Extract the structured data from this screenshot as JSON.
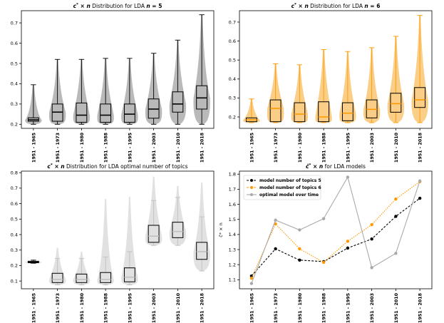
{
  "chart_data": [
    {
      "type": "violin-box",
      "title": "c* × n Distribution for LDA n = 5",
      "title_parts": [
        "c",
        "*",
        " × ",
        "n",
        " Distribution for LDA ",
        "n",
        " = 5"
      ],
      "categories": [
        "1951 - 1965",
        "1951 - 1973",
        "1951 - 1980",
        "1951 - 1988",
        "1951 - 1995",
        "1951 - 2003",
        "1951 - 2010",
        "1951 - 2018"
      ],
      "ylim": [
        0.18,
        0.76
      ],
      "yticks": [
        0.2,
        0.3,
        0.4,
        0.5,
        0.6,
        0.7
      ],
      "color_box": "#000000",
      "color_median": "#000000",
      "color_violin": "#808080",
      "boxes": [
        {
          "min": 0.2,
          "q1": 0.215,
          "median": 0.222,
          "q3": 0.232,
          "max": 0.395,
          "box_color": "#000000",
          "med_color": "#000000",
          "cap_color": "#000000",
          "vtop": 0.395
        },
        {
          "min": 0.2,
          "q1": 0.215,
          "median": 0.26,
          "q3": 0.3,
          "max": 0.52,
          "box_color": "#000000",
          "med_color": "#000000",
          "cap_color": "#000000",
          "vtop": 0.52
        },
        {
          "min": 0.2,
          "q1": 0.21,
          "median": 0.245,
          "q3": 0.305,
          "max": 0.52,
          "box_color": "#000000",
          "med_color": "#000000",
          "cap_color": "#000000",
          "vtop": 0.52
        },
        {
          "min": 0.2,
          "q1": 0.21,
          "median": 0.245,
          "q3": 0.3,
          "max": 0.525,
          "box_color": "#000000",
          "med_color": "#000000",
          "cap_color": "#000000",
          "vtop": 0.525
        },
        {
          "min": 0.2,
          "q1": 0.21,
          "median": 0.25,
          "q3": 0.3,
          "max": 0.525,
          "box_color": "#000000",
          "med_color": "#000000",
          "cap_color": "#000000",
          "vtop": 0.525
        },
        {
          "min": 0.2,
          "q1": 0.23,
          "median": 0.275,
          "q3": 0.325,
          "max": 0.55,
          "box_color": "#000000",
          "med_color": "#000000",
          "cap_color": "#000000",
          "vtop": 0.55
        },
        {
          "min": 0.2,
          "q1": 0.26,
          "median": 0.3,
          "q3": 0.36,
          "max": 0.615,
          "box_color": "#000000",
          "med_color": "#000000",
          "cap_color": "#000000",
          "vtop": 0.615
        },
        {
          "min": 0.2,
          "q1": 0.275,
          "median": 0.33,
          "q3": 0.39,
          "max": 0.74,
          "box_color": "#000000",
          "med_color": "#000000",
          "cap_color": "#000000",
          "vtop": 0.74
        }
      ]
    },
    {
      "type": "violin-box",
      "title": "c* × n Distribution for LDA n = 6",
      "title_parts": [
        "c",
        "*",
        " × ",
        "n",
        " Distribution for LDA ",
        "n",
        " = 6"
      ],
      "categories": [
        "1951 - 1965",
        "1951 - 1973",
        "1951 - 1980",
        "1951 - 1988",
        "1951 - 1995",
        "1951 - 2003",
        "1951 - 2010",
        "1951 - 2018"
      ],
      "ylim": [
        0.14,
        0.76
      ],
      "yticks": [
        0.2,
        0.3,
        0.4,
        0.5,
        0.6,
        0.7
      ],
      "color_box": "#000000",
      "color_median": "#ff9900",
      "color_violin": "#f5a623",
      "boxes": [
        {
          "min": 0.17,
          "q1": 0.175,
          "median": 0.185,
          "q3": 0.195,
          "max": 0.295,
          "box_color": "#000000",
          "med_color": "#ff9900",
          "cap_color": "#ff9900",
          "vtop": 0.295
        },
        {
          "min": 0.17,
          "q1": 0.175,
          "median": 0.245,
          "q3": 0.29,
          "max": 0.48,
          "box_color": "#000000",
          "med_color": "#ff9900",
          "cap_color": "#ff9900",
          "vtop": 0.48
        },
        {
          "min": 0.17,
          "q1": 0.175,
          "median": 0.215,
          "q3": 0.275,
          "max": 0.475,
          "box_color": "#000000",
          "med_color": "#ff9900",
          "cap_color": "#ff9900",
          "vtop": 0.475
        },
        {
          "min": 0.17,
          "q1": 0.175,
          "median": 0.2,
          "q3": 0.28,
          "max": 0.555,
          "box_color": "#000000",
          "med_color": "#ff9900",
          "cap_color": "#ff9900",
          "vtop": 0.555
        },
        {
          "min": 0.17,
          "q1": 0.18,
          "median": 0.22,
          "q3": 0.275,
          "max": 0.545,
          "box_color": "#000000",
          "med_color": "#ff9900",
          "cap_color": "#ff9900",
          "vtop": 0.545
        },
        {
          "min": 0.17,
          "q1": 0.195,
          "median": 0.24,
          "q3": 0.29,
          "max": 0.565,
          "box_color": "#000000",
          "med_color": "#ff9900",
          "cap_color": "#ff9900",
          "vtop": 0.565
        },
        {
          "min": 0.17,
          "q1": 0.225,
          "median": 0.27,
          "q3": 0.325,
          "max": 0.625,
          "box_color": "#000000",
          "med_color": "#ff9900",
          "cap_color": "#ff9900",
          "vtop": 0.625
        },
        {
          "min": 0.17,
          "q1": 0.25,
          "median": 0.29,
          "q3": 0.355,
          "max": 0.735,
          "box_color": "#000000",
          "med_color": "#ff9900",
          "cap_color": "#ff9900",
          "vtop": 0.735
        }
      ]
    },
    {
      "type": "violin-box",
      "title": "c* × n Distribution for LDA optimal number of topics",
      "title_parts": [
        "c",
        "*",
        " × ",
        "n",
        " Distribution for LDA optimal number of topics",
        "",
        ""
      ],
      "categories": [
        "1951 - 1965",
        "1951 - 1973",
        "1951 - 1980",
        "1951 - 1988",
        "1951 - 1995",
        "1951 - 2003",
        "1951 - 2010",
        "1951 - 2018"
      ],
      "ylim": [
        0.05,
        0.81
      ],
      "yticks": [
        0.1,
        0.2,
        0.3,
        0.4,
        0.5,
        0.6,
        0.7,
        0.8
      ],
      "color_box": "#000000",
      "color_median": "#c0c0c0",
      "color_violin": "#c8c8c8",
      "boxes": [
        {
          "min": 0.215,
          "q1": 0.218,
          "median": 0.222,
          "q3": 0.228,
          "max": 0.235,
          "box_color": "#000000",
          "med_color": "#000000",
          "cap_color": "#000000",
          "vtop": 0.235
        },
        {
          "min": 0.075,
          "q1": 0.09,
          "median": 0.11,
          "q3": 0.15,
          "max": 0.245,
          "box_color": "#000000",
          "med_color": "#c0c0c0",
          "cap_color": "#c0c0c0",
          "vtop": 0.315
        },
        {
          "min": 0.075,
          "q1": 0.09,
          "median": 0.11,
          "q3": 0.145,
          "max": 0.245,
          "box_color": "#000000",
          "med_color": "#c0c0c0",
          "cap_color": "#c0c0c0",
          "vtop": 0.29
        },
        {
          "min": 0.075,
          "q1": 0.09,
          "median": 0.11,
          "q3": 0.155,
          "max": 0.255,
          "box_color": "#000000",
          "med_color": "#c0c0c0",
          "cap_color": "#c0c0c0",
          "vtop": 0.63
        },
        {
          "min": 0.075,
          "q1": 0.095,
          "median": 0.125,
          "q3": 0.185,
          "max": 0.29,
          "box_color": "#000000",
          "med_color": "#c0c0c0",
          "cap_color": "#c0c0c0",
          "vtop": 0.645
        },
        {
          "min": 0.33,
          "q1": 0.35,
          "median": 0.39,
          "q3": 0.46,
          "max": 0.62,
          "box_color": "#000000",
          "med_color": "#c0c0c0",
          "cap_color": "#c0c0c0",
          "vtop": 0.775
        },
        {
          "min": 0.33,
          "q1": 0.38,
          "median": 0.42,
          "q3": 0.48,
          "max": 0.64,
          "box_color": "#000000",
          "med_color": "#c0c0c0",
          "cap_color": "#c0c0c0",
          "vtop": 0.715
        },
        {
          "min": 0.165,
          "q1": 0.24,
          "median": 0.29,
          "q3": 0.35,
          "max": 0.515,
          "box_color": "#000000",
          "med_color": "#c0c0c0",
          "cap_color": "#c0c0c0",
          "vtop": 0.735
        }
      ]
    },
    {
      "type": "line",
      "title": "c̄* × n for LDA models",
      "title_parts": [
        "c̄",
        "*",
        " × ",
        "n",
        " for LDA models",
        "",
        ""
      ],
      "ylabel": "c̄* × n",
      "categories": [
        "1951 - 1965",
        "1951 - 1973",
        "1951 - 1980",
        "1951 - 1988",
        "1951 - 1995",
        "1951 - 2003",
        "1951 - 2010",
        "1951 - 2018"
      ],
      "ylim": [
        1.04,
        1.82
      ],
      "yticks": [
        1.1,
        1.2,
        1.3,
        1.4,
        1.5,
        1.6,
        1.7,
        1.8
      ],
      "legend_position": "top-left",
      "series": [
        {
          "name": "model number of topics 5",
          "color": "#000000",
          "dashed": true,
          "values": [
            1.125,
            1.305,
            1.23,
            1.22,
            1.31,
            1.37,
            1.52,
            1.64
          ]
        },
        {
          "name": "model number of topics 6",
          "color": "#ff9900",
          "dashed": true,
          "values": [
            1.11,
            1.47,
            1.305,
            1.215,
            1.355,
            1.465,
            1.635,
            1.75
          ]
        },
        {
          "name": "optimal model over time",
          "color": "#a9a9a9",
          "dashed": false,
          "values": [
            1.075,
            1.495,
            1.43,
            1.505,
            1.78,
            1.18,
            1.275,
            1.755
          ]
        }
      ]
    }
  ]
}
